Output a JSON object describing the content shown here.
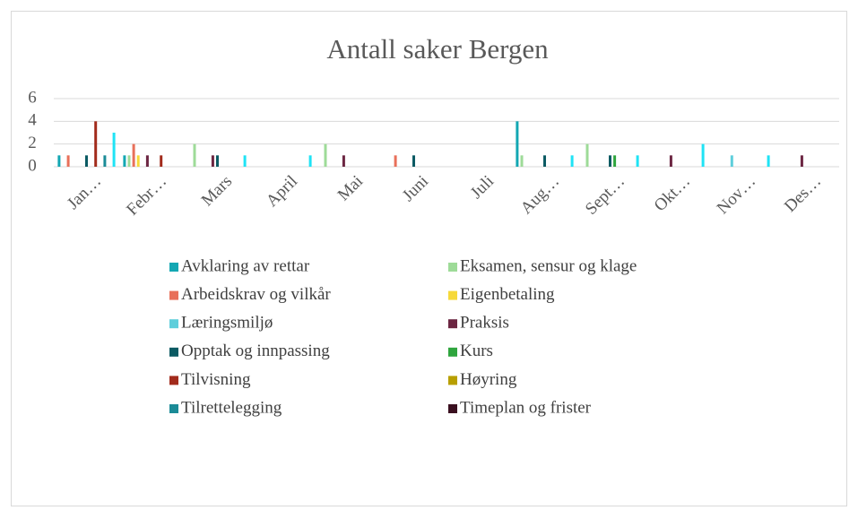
{
  "chart_data": {
    "type": "bar",
    "title": "Antall saker Bergen",
    "categories": [
      "Jan…",
      "Febr…",
      "Mars",
      "April",
      "Mai",
      "Juni",
      "Juli",
      "Aug…",
      "Sept…",
      "Okt…",
      "Nov…",
      "Des…"
    ],
    "ylim": [
      0,
      6
    ],
    "yticks": [
      0,
      2,
      4,
      6
    ],
    "grid": true,
    "series": [
      {
        "name": "Avklaring av rettar",
        "color": "#13a7b3",
        "values": [
          1,
          1,
          0,
          0,
          0,
          0,
          0,
          4,
          0,
          0,
          0,
          0
        ]
      },
      {
        "name": "Eksamen, sensur og klage",
        "color": "#9edb98",
        "values": [
          0,
          1,
          2,
          0,
          2,
          0,
          0,
          1,
          2,
          0,
          0,
          0
        ]
      },
      {
        "name": "Arbeidskrav og vilkår",
        "color": "#e8705a",
        "values": [
          1,
          2,
          0,
          0,
          0,
          1,
          0,
          0,
          0,
          0,
          0,
          0
        ]
      },
      {
        "name": "Eigenbetaling",
        "color": "#f6d93a",
        "values": [
          0,
          1,
          0,
          0,
          0,
          0,
          0,
          0,
          0,
          0,
          0,
          0
        ]
      },
      {
        "name": "Læringsmiljø",
        "color": "#5ecedb",
        "values": [
          0,
          0,
          0,
          0,
          0,
          0,
          0,
          0,
          0,
          0,
          1,
          0
        ]
      },
      {
        "name": "Praksis",
        "color": "#6c2642",
        "values": [
          0,
          1,
          1,
          0,
          1,
          0,
          0,
          0,
          0,
          1,
          0,
          1
        ]
      },
      {
        "name": "Opptak og innpassing",
        "color": "#0b5a63",
        "values": [
          1,
          0,
          1,
          0,
          0,
          1,
          0,
          1,
          1,
          0,
          0,
          0
        ]
      },
      {
        "name": "Kurs",
        "color": "#2fa53e",
        "values": [
          0,
          0,
          0,
          0,
          0,
          0,
          0,
          0,
          1,
          0,
          0,
          0
        ]
      },
      {
        "name": "Tilvisning",
        "color": "#a22b1c",
        "values": [
          4,
          1,
          0,
          0,
          0,
          0,
          0,
          0,
          0,
          0,
          0,
          0
        ]
      },
      {
        "name": "Høyring",
        "color": "#b89f00",
        "values": [
          0,
          0,
          0,
          0,
          0,
          0,
          0,
          0,
          0,
          0,
          0,
          0
        ]
      },
      {
        "name": "Tilrettelegging",
        "color": "#1b8b97",
        "values": [
          1,
          0,
          0,
          0,
          0,
          0,
          0,
          0,
          0,
          0,
          0,
          0
        ]
      },
      {
        "name": "Timeplan og frister",
        "color": "#3a1020",
        "values": [
          0,
          0,
          0,
          0,
          0,
          0,
          0,
          0,
          0,
          0,
          0,
          0
        ]
      },
      {
        "color": "#1fe3f5",
        "values": [
          3,
          0,
          1,
          1,
          0,
          0,
          0,
          1,
          1,
          2,
          1,
          0
        ]
      }
    ]
  }
}
